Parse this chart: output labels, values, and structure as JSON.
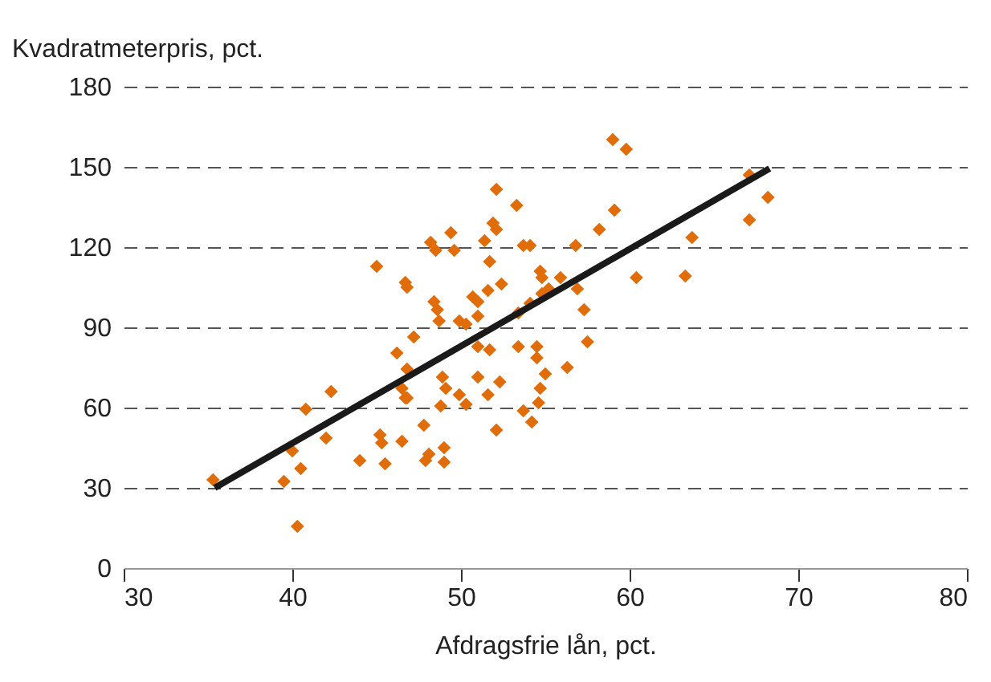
{
  "chart_data": {
    "type": "scatter",
    "xlabel": "Afdragsfrie lån, pct.",
    "ylabel": "Kvadratmeterpris, pct.",
    "xlim": [
      30,
      80
    ],
    "xticks": [
      30,
      40,
      50,
      60,
      70,
      80
    ],
    "ylim": [
      0,
      180
    ],
    "yticks": [
      0,
      30,
      60,
      90,
      120,
      150,
      180
    ],
    "grid": "y",
    "series": [
      {
        "marker": "diamond",
        "color": "#e06c0a",
        "x": [
          35.3,
          39.5,
          40.5,
          40.0,
          40.3,
          40.8,
          42.3,
          42.0,
          44.0,
          45.2,
          45.3,
          45.5,
          46.5,
          47.8,
          47.9,
          48.1,
          49.0,
          49.0,
          48.8,
          46.7,
          52.1,
          53.3,
          49.4,
          51.9,
          52.1,
          51.4,
          48.2,
          48.5,
          49.6,
          53.7,
          54.1,
          56.8,
          51.7,
          45.0,
          46.7,
          46.8,
          54.7,
          54.8,
          55.9,
          52.4,
          51.6,
          50.7,
          48.4,
          51.0,
          48.6,
          51.0,
          48.7,
          49.9,
          50.3,
          54.1,
          54.8,
          53.4,
          47.2,
          46.2,
          46.8,
          46.5,
          46.8,
          48.9,
          49.1,
          49.9,
          50.3,
          51.0,
          51.6,
          52.3,
          51.7,
          51.0,
          53.4,
          54.5,
          54.5,
          55.0,
          54.7,
          54.6,
          56.3,
          53.7,
          54.2,
          52.1,
          59.0,
          59.8,
          67.1,
          68.2,
          67.1,
          59.1,
          58.2,
          63.7,
          63.3,
          60.4,
          55.2,
          56.9,
          57.3,
          57.5
        ],
        "values": [
          33.0,
          32.4,
          37.2,
          43.8,
          15.6,
          59.4,
          66.0,
          48.6,
          40.2,
          49.8,
          46.8,
          39.0,
          47.4,
          53.4,
          40.2,
          42.6,
          45.0,
          39.6,
          60.6,
          63.6,
          141.6,
          135.6,
          125.4,
          129.0,
          126.6,
          122.4,
          121.8,
          118.8,
          118.8,
          120.6,
          120.6,
          120.6,
          114.6,
          112.8,
          106.8,
          105.0,
          111.0,
          108.6,
          108.6,
          106.2,
          103.8,
          101.4,
          99.6,
          99.6,
          96.6,
          94.2,
          92.4,
          92.4,
          91.2,
          99.0,
          102.6,
          95.4,
          86.4,
          80.4,
          74.4,
          67.2,
          63.6,
          71.4,
          67.2,
          64.8,
          61.2,
          71.4,
          64.8,
          69.6,
          81.6,
          82.8,
          82.8,
          82.8,
          78.6,
          72.6,
          67.2,
          61.8,
          75.0,
          58.8,
          54.6,
          51.6,
          160.2,
          156.6,
          147.0,
          138.6,
          130.2,
          133.8,
          126.6,
          123.6,
          109.2,
          108.6,
          104.4,
          104.4,
          96.6,
          84.6
        ]
      },
      {
        "type": "line",
        "marker": "none",
        "color": "#1a1a1a",
        "x": [
          35.4,
          68.3
        ],
        "values": [
          30,
          149.4
        ]
      }
    ]
  }
}
